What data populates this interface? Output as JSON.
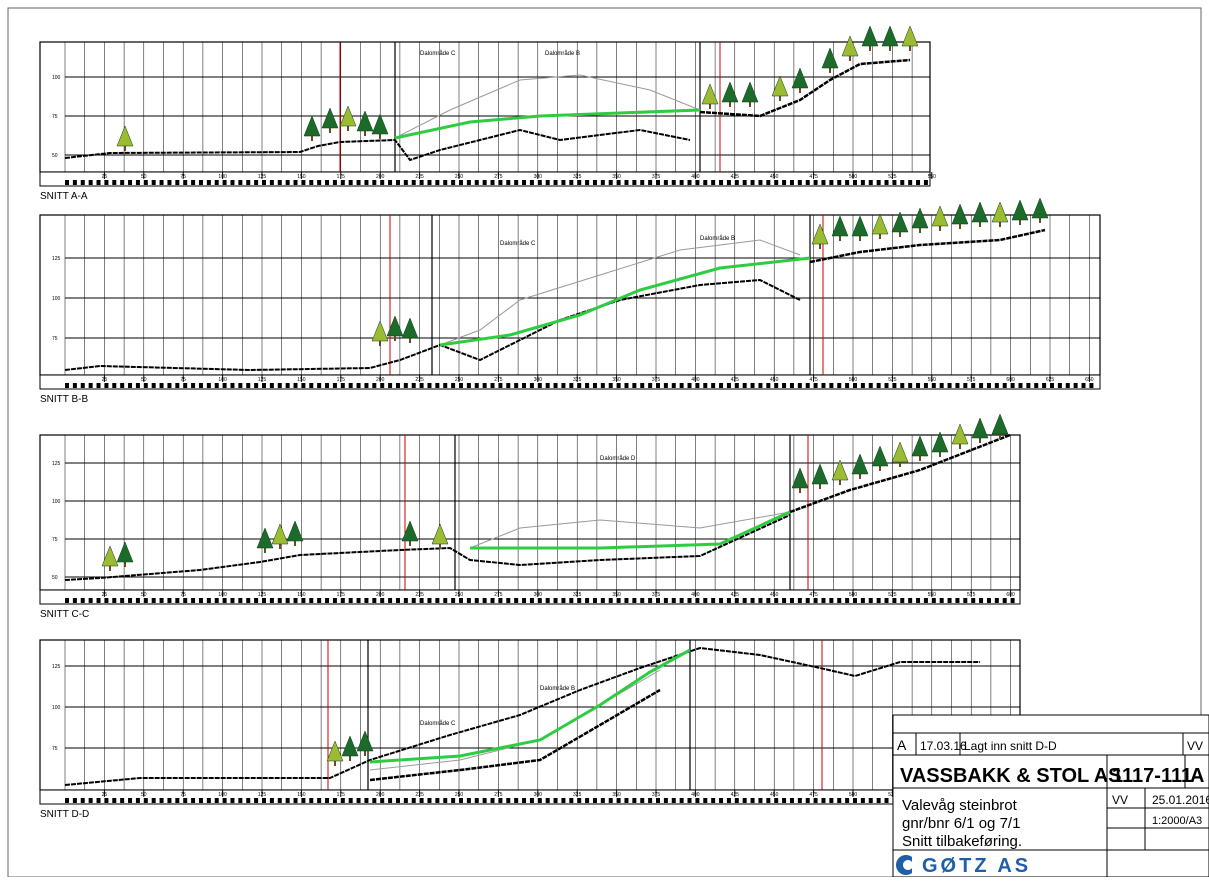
{
  "sections": [
    {
      "label": "SNITT A-A",
      "xticks": [
        25,
        50,
        75,
        100,
        125,
        150,
        175,
        200,
        225,
        250,
        275,
        300,
        325,
        350,
        375,
        400,
        425,
        450,
        475,
        500,
        525,
        550
      ],
      "yticks": [
        50,
        75,
        100
      ],
      "annotations": [
        "Dalområde C",
        "Dalområde B"
      ]
    },
    {
      "label": "SNITT B-B",
      "xticks": [
        25,
        50,
        75,
        100,
        125,
        150,
        175,
        200,
        225,
        250,
        275,
        300,
        325,
        350,
        375,
        400,
        425,
        450,
        475,
        500,
        525,
        550,
        575,
        600,
        625,
        650
      ],
      "yticks": [
        75,
        100,
        125
      ],
      "annotations": [
        "Dalområde C",
        "Dalområde B"
      ]
    },
    {
      "label": "SNITT C-C",
      "xticks": [
        25,
        50,
        75,
        100,
        125,
        150,
        175,
        200,
        225,
        250,
        275,
        300,
        325,
        350,
        375,
        400,
        425,
        450,
        475,
        500,
        525,
        550,
        575,
        600
      ],
      "yticks": [
        50,
        75,
        100,
        125
      ],
      "annotations": [
        "Dalområde D"
      ]
    },
    {
      "label": "SNITT D-D",
      "xticks": [
        25,
        50,
        75,
        100,
        125,
        150,
        175,
        200,
        225,
        250,
        275,
        300,
        325,
        350,
        375,
        400,
        425,
        450,
        475,
        500,
        525
      ],
      "yticks": [
        75,
        100,
        125
      ],
      "annotations": [
        "Dalområde C",
        "Dalområde B"
      ]
    }
  ],
  "title_block": {
    "revision": "A",
    "rev_date": "17.03.16",
    "rev_text": "Lagt inn snitt D-D",
    "rev_sign": "VV",
    "client": "VASSBAKK & STOL AS",
    "drawing_no": "1117-111",
    "drawing_rev": "A",
    "project_lines": [
      "Valevåg steinbrot",
      "gnr/bnr 6/1 og 7/1",
      "Snitt tilbakeføring."
    ],
    "drawn": "VV",
    "date": "25.01.2016",
    "scale": "1:2000/A3",
    "company": "GØTZ AS"
  }
}
